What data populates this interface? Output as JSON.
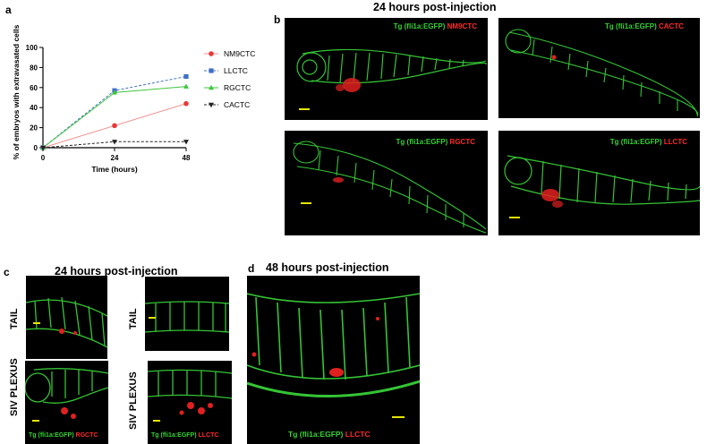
{
  "panel_a": {
    "letter": "a",
    "chart_data": {
      "type": "line",
      "x": [
        0,
        24,
        48
      ],
      "xlabel": "Time (hours)",
      "ylabel": "% of embryos with extravasated cells",
      "ylim": [
        0,
        100
      ],
      "yticks": [
        0,
        20,
        40,
        60,
        80,
        100
      ],
      "xticks": [
        0,
        24,
        48
      ],
      "series": [
        {
          "name": "NM9CTC",
          "values": [
            0,
            22,
            44
          ],
          "color": "#e8393b",
          "marker": "circle",
          "dash": "solid-light"
        },
        {
          "name": "LLCTC",
          "values": [
            0,
            57,
            71
          ],
          "color": "#3f6fc6",
          "marker": "square",
          "dash": "dashed"
        },
        {
          "name": "RGCTC",
          "values": [
            0,
            55,
            61
          ],
          "color": "#3fc63f",
          "marker": "triangle",
          "dash": "solid"
        },
        {
          "name": "CACTC",
          "values": [
            0,
            6,
            6
          ],
          "color": "#222222",
          "marker": "triangle-down",
          "dash": "dashed"
        }
      ],
      "legend": "right"
    }
  },
  "panel_b": {
    "letter": "b",
    "heading": "24 hours post-injection",
    "images": [
      {
        "line": "Tg (fli1a:EGFP)",
        "tumor": "NM9CTC"
      },
      {
        "line": "Tg (fli1a:EGFP)",
        "tumor": "CACTC"
      },
      {
        "line": "Tg (fli1a:EGFP)",
        "tumor": "RGCTC"
      },
      {
        "line": "Tg (fli1a:EGFP)",
        "tumor": "LLCTC"
      }
    ]
  },
  "panel_c": {
    "letter": "c",
    "heading": "24 hours post-injection",
    "row_labels": [
      "TAIL",
      "SIV PLEXUS"
    ],
    "captions": [
      {
        "line": "Tg (fli1a:EGFP)",
        "tumor": "RGCTC"
      },
      {
        "line": "Tg (fli1a:EGFP)",
        "tumor": "LLCTC"
      }
    ]
  },
  "panel_d": {
    "letter": "d",
    "heading": "48 hours post-injection",
    "caption": {
      "line": "Tg (fli1a:EGFP)",
      "tumor": "LLCTC"
    }
  }
}
